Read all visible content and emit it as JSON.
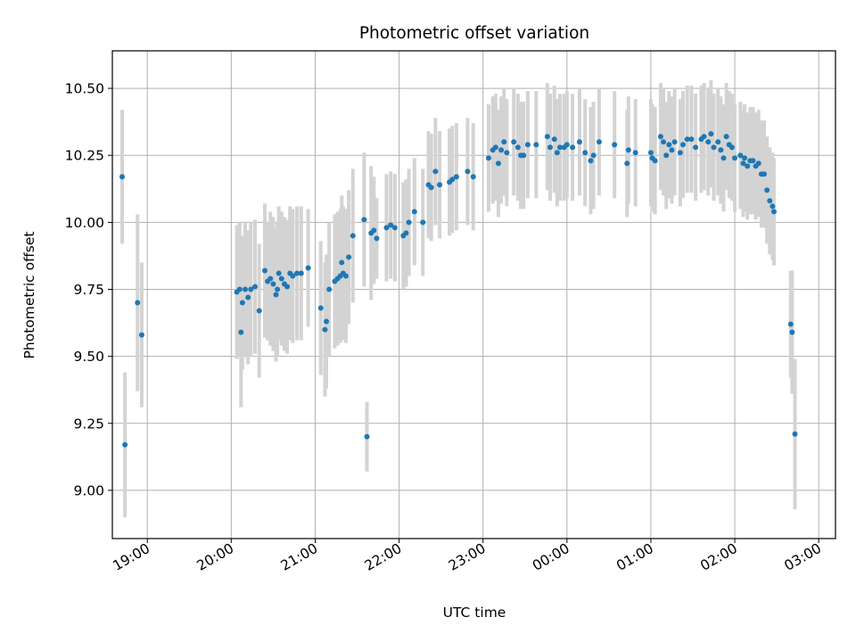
{
  "chart_data": {
    "type": "scatter",
    "title": "Photometric offset variation",
    "xlabel": "UTC time",
    "ylabel": "Photometric offset",
    "x_unit": "UTC time (HH:MM)",
    "xlim": [
      "18:35",
      "03:12"
    ],
    "ylim": [
      8.82,
      10.64
    ],
    "grid": true,
    "x_ticks": [
      "19:00",
      "20:00",
      "21:00",
      "22:00",
      "23:00",
      "00:00",
      "01:00",
      "02:00",
      "03:00"
    ],
    "y_ticks": [
      "9.00",
      "9.25",
      "9.50",
      "9.75",
      "10.00",
      "10.25",
      "10.50"
    ],
    "colors": {
      "points": "#1f77b4",
      "error_bars": "#d3d3d3",
      "grid": "#b0b0b0"
    },
    "points": [
      {
        "t": "18:42",
        "y": 10.17,
        "err": 0.25
      },
      {
        "t": "18:44",
        "y": 9.17,
        "err": 0.27
      },
      {
        "t": "18:53",
        "y": 9.7,
        "err": 0.33
      },
      {
        "t": "18:56",
        "y": 9.58,
        "err": 0.27
      },
      {
        "t": "20:04",
        "y": 9.74,
        "err": 0.25
      },
      {
        "t": "20:06",
        "y": 9.75,
        "err": 0.25
      },
      {
        "t": "20:07",
        "y": 9.59,
        "err": 0.28
      },
      {
        "t": "20:08",
        "y": 9.7,
        "err": 0.25
      },
      {
        "t": "20:10",
        "y": 9.75,
        "err": 0.25
      },
      {
        "t": "20:12",
        "y": 9.72,
        "err": 0.25
      },
      {
        "t": "20:14",
        "y": 9.75,
        "err": 0.25
      },
      {
        "t": "20:17",
        "y": 9.76,
        "err": 0.25
      },
      {
        "t": "20:20",
        "y": 9.67,
        "err": 0.25
      },
      {
        "t": "20:24",
        "y": 9.82,
        "err": 0.25
      },
      {
        "t": "20:26",
        "y": 9.78,
        "err": 0.22
      },
      {
        "t": "20:28",
        "y": 9.79,
        "err": 0.25
      },
      {
        "t": "20:30",
        "y": 9.77,
        "err": 0.25
      },
      {
        "t": "20:32",
        "y": 9.73,
        "err": 0.25
      },
      {
        "t": "20:33",
        "y": 9.75,
        "err": 0.25
      },
      {
        "t": "20:34",
        "y": 9.81,
        "err": 0.25
      },
      {
        "t": "20:36",
        "y": 9.79,
        "err": 0.25
      },
      {
        "t": "20:38",
        "y": 9.77,
        "err": 0.25
      },
      {
        "t": "20:40",
        "y": 9.76,
        "err": 0.25
      },
      {
        "t": "20:42",
        "y": 9.81,
        "err": 0.25
      },
      {
        "t": "20:44",
        "y": 9.8,
        "err": 0.25
      },
      {
        "t": "20:47",
        "y": 9.81,
        "err": 0.25
      },
      {
        "t": "20:50",
        "y": 9.81,
        "err": 0.25
      },
      {
        "t": "20:55",
        "y": 9.83,
        "err": 0.22
      },
      {
        "t": "21:04",
        "y": 9.68,
        "err": 0.25
      },
      {
        "t": "21:07",
        "y": 9.6,
        "err": 0.25
      },
      {
        "t": "21:08",
        "y": 9.63,
        "err": 0.25
      },
      {
        "t": "21:10",
        "y": 9.75,
        "err": 0.25
      },
      {
        "t": "21:14",
        "y": 9.78,
        "err": 0.25
      },
      {
        "t": "21:16",
        "y": 9.79,
        "err": 0.25
      },
      {
        "t": "21:18",
        "y": 9.8,
        "err": 0.25
      },
      {
        "t": "21:19",
        "y": 9.85,
        "err": 0.25
      },
      {
        "t": "21:20",
        "y": 9.81,
        "err": 0.25
      },
      {
        "t": "21:22",
        "y": 9.8,
        "err": 0.25
      },
      {
        "t": "21:24",
        "y": 9.87,
        "err": 0.25
      },
      {
        "t": "21:27",
        "y": 9.95,
        "err": 0.25
      },
      {
        "t": "21:35",
        "y": 10.01,
        "err": 0.25
      },
      {
        "t": "21:37",
        "y": 9.2,
        "err": 0.13
      },
      {
        "t": "21:40",
        "y": 9.96,
        "err": 0.25
      },
      {
        "t": "21:42",
        "y": 9.97,
        "err": 0.2
      },
      {
        "t": "21:44",
        "y": 9.94,
        "err": 0.15
      },
      {
        "t": "21:51",
        "y": 9.98,
        "err": 0.2
      },
      {
        "t": "21:54",
        "y": 9.99,
        "err": 0.2
      },
      {
        "t": "21:57",
        "y": 9.98,
        "err": 0.2
      },
      {
        "t": "22:03",
        "y": 9.95,
        "err": 0.2
      },
      {
        "t": "22:05",
        "y": 9.96,
        "err": 0.2
      },
      {
        "t": "22:07",
        "y": 10.0,
        "err": 0.2
      },
      {
        "t": "22:11",
        "y": 10.04,
        "err": 0.2
      },
      {
        "t": "22:17",
        "y": 10.0,
        "err": 0.2
      },
      {
        "t": "22:21",
        "y": 10.14,
        "err": 0.2
      },
      {
        "t": "22:23",
        "y": 10.13,
        "err": 0.2
      },
      {
        "t": "22:26",
        "y": 10.19,
        "err": 0.2
      },
      {
        "t": "22:29",
        "y": 10.14,
        "err": 0.2
      },
      {
        "t": "22:36",
        "y": 10.15,
        "err": 0.2
      },
      {
        "t": "22:38",
        "y": 10.16,
        "err": 0.2
      },
      {
        "t": "22:41",
        "y": 10.17,
        "err": 0.2
      },
      {
        "t": "22:49",
        "y": 10.19,
        "err": 0.2
      },
      {
        "t": "22:53",
        "y": 10.17,
        "err": 0.2
      },
      {
        "t": "23:04",
        "y": 10.24,
        "err": 0.2
      },
      {
        "t": "23:07",
        "y": 10.27,
        "err": 0.2
      },
      {
        "t": "23:09",
        "y": 10.28,
        "err": 0.2
      },
      {
        "t": "23:11",
        "y": 10.22,
        "err": 0.2
      },
      {
        "t": "23:13",
        "y": 10.27,
        "err": 0.2
      },
      {
        "t": "23:15",
        "y": 10.3,
        "err": 0.2
      },
      {
        "t": "23:17",
        "y": 10.26,
        "err": 0.2
      },
      {
        "t": "23:22",
        "y": 10.3,
        "err": 0.2
      },
      {
        "t": "23:25",
        "y": 10.28,
        "err": 0.2
      },
      {
        "t": "23:27",
        "y": 10.25,
        "err": 0.2
      },
      {
        "t": "23:29",
        "y": 10.25,
        "err": 0.2
      },
      {
        "t": "23:32",
        "y": 10.29,
        "err": 0.2
      },
      {
        "t": "23:38",
        "y": 10.29,
        "err": 0.2
      },
      {
        "t": "23:46",
        "y": 10.32,
        "err": 0.2
      },
      {
        "t": "23:48",
        "y": 10.28,
        "err": 0.2
      },
      {
        "t": "23:51",
        "y": 10.31,
        "err": 0.2
      },
      {
        "t": "23:53",
        "y": 10.26,
        "err": 0.2
      },
      {
        "t": "23:55",
        "y": 10.28,
        "err": 0.2
      },
      {
        "t": "23:58",
        "y": 10.28,
        "err": 0.2
      },
      {
        "t": "00:00",
        "y": 10.29,
        "err": 0.2
      },
      {
        "t": "00:04",
        "y": 10.28,
        "err": 0.2
      },
      {
        "t": "00:09",
        "y": 10.3,
        "err": 0.2
      },
      {
        "t": "00:13",
        "y": 10.26,
        "err": 0.2
      },
      {
        "t": "00:17",
        "y": 10.23,
        "err": 0.2
      },
      {
        "t": "00:19",
        "y": 10.25,
        "err": 0.2
      },
      {
        "t": "00:23",
        "y": 10.3,
        "err": 0.2
      },
      {
        "t": "00:34",
        "y": 10.29,
        "err": 0.2
      },
      {
        "t": "00:43",
        "y": 10.22,
        "err": 0.2
      },
      {
        "t": "00:44",
        "y": 10.27,
        "err": 0.2
      },
      {
        "t": "00:49",
        "y": 10.26,
        "err": 0.2
      },
      {
        "t": "01:00",
        "y": 10.26,
        "err": 0.2
      },
      {
        "t": "01:01",
        "y": 10.24,
        "err": 0.2
      },
      {
        "t": "01:03",
        "y": 10.23,
        "err": 0.2
      },
      {
        "t": "01:07",
        "y": 10.32,
        "err": 0.2
      },
      {
        "t": "01:09",
        "y": 10.3,
        "err": 0.2
      },
      {
        "t": "01:11",
        "y": 10.25,
        "err": 0.2
      },
      {
        "t": "01:13",
        "y": 10.29,
        "err": 0.2
      },
      {
        "t": "01:15",
        "y": 10.27,
        "err": 0.2
      },
      {
        "t": "01:17",
        "y": 10.3,
        "err": 0.2
      },
      {
        "t": "01:21",
        "y": 10.26,
        "err": 0.2
      },
      {
        "t": "01:23",
        "y": 10.29,
        "err": 0.2
      },
      {
        "t": "01:26",
        "y": 10.31,
        "err": 0.2
      },
      {
        "t": "01:29",
        "y": 10.31,
        "err": 0.2
      },
      {
        "t": "01:32",
        "y": 10.28,
        "err": 0.2
      },
      {
        "t": "01:36",
        "y": 10.31,
        "err": 0.2
      },
      {
        "t": "01:38",
        "y": 10.32,
        "err": 0.2
      },
      {
        "t": "01:41",
        "y": 10.3,
        "err": 0.2
      },
      {
        "t": "01:43",
        "y": 10.33,
        "err": 0.2
      },
      {
        "t": "01:45",
        "y": 10.28,
        "err": 0.2
      },
      {
        "t": "01:48",
        "y": 10.3,
        "err": 0.2
      },
      {
        "t": "01:50",
        "y": 10.27,
        "err": 0.2
      },
      {
        "t": "01:52",
        "y": 10.24,
        "err": 0.2
      },
      {
        "t": "01:54",
        "y": 10.32,
        "err": 0.2
      },
      {
        "t": "01:56",
        "y": 10.29,
        "err": 0.2
      },
      {
        "t": "01:58",
        "y": 10.28,
        "err": 0.2
      },
      {
        "t": "02:00",
        "y": 10.24,
        "err": 0.2
      },
      {
        "t": "02:04",
        "y": 10.25,
        "err": 0.2
      },
      {
        "t": "02:06",
        "y": 10.22,
        "err": 0.2
      },
      {
        "t": "02:07",
        "y": 10.24,
        "err": 0.2
      },
      {
        "t": "02:09",
        "y": 10.21,
        "err": 0.2
      },
      {
        "t": "02:11",
        "y": 10.23,
        "err": 0.2
      },
      {
        "t": "02:13",
        "y": 10.23,
        "err": 0.2
      },
      {
        "t": "02:15",
        "y": 10.21,
        "err": 0.2
      },
      {
        "t": "02:17",
        "y": 10.22,
        "err": 0.2
      },
      {
        "t": "02:19",
        "y": 10.18,
        "err": 0.2
      },
      {
        "t": "02:21",
        "y": 10.18,
        "err": 0.2
      },
      {
        "t": "02:23",
        "y": 10.12,
        "err": 0.2
      },
      {
        "t": "02:25",
        "y": 10.08,
        "err": 0.2
      },
      {
        "t": "02:27",
        "y": 10.06,
        "err": 0.2
      },
      {
        "t": "02:28",
        "y": 10.04,
        "err": 0.2
      },
      {
        "t": "02:40",
        "y": 9.62,
        "err": 0.2
      },
      {
        "t": "02:41",
        "y": 9.59,
        "err": 0.23
      },
      {
        "t": "02:43",
        "y": 9.21,
        "err": 0.28
      }
    ]
  }
}
